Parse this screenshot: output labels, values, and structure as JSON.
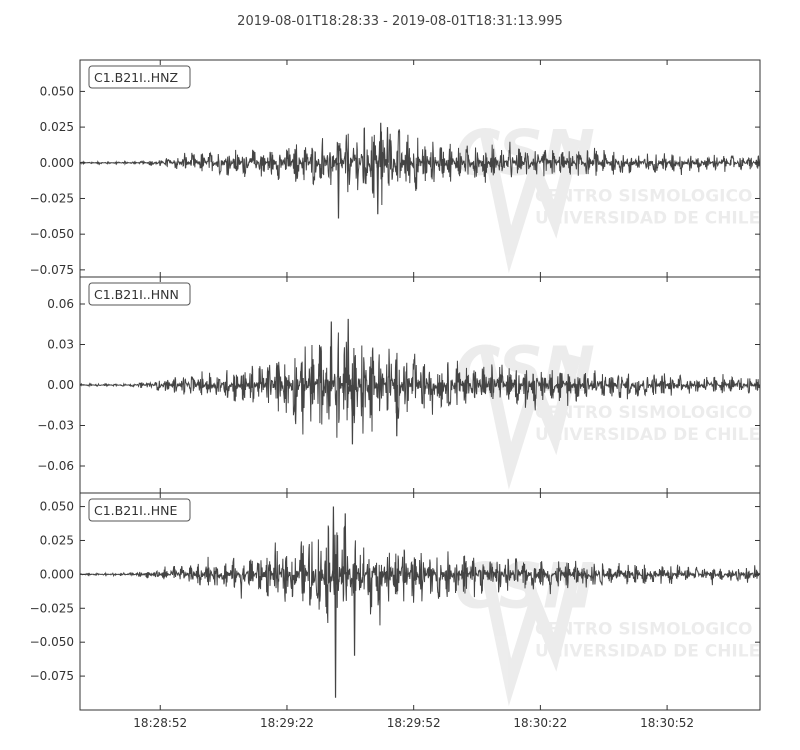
{
  "chart_data": {
    "type": "line",
    "title": "2019-08-01T18:28:33  -  2019-08-01T18:31:13.995",
    "x_range": [
      "2019-08-01T18:28:33",
      "2019-08-01T18:31:13.995"
    ],
    "x_ticks": [
      "18:28:52",
      "18:29:22",
      "18:29:52",
      "18:30:22",
      "18:30:52"
    ],
    "line_color": "#444444",
    "watermark": {
      "logo_text": "CSN",
      "lines": [
        "CENTRO SISMOLOGICO NACIONAL",
        "UNIVERSIDAD DE CHILE"
      ]
    },
    "panels": [
      {
        "label": "C1.B21I..HNZ",
        "ylim": [
          -0.08,
          0.072
        ],
        "y_ticks": [
          0.05,
          0.025,
          0.0,
          -0.025,
          -0.05,
          -0.075
        ],
        "y_tick_labels": [
          "0.050",
          "0.025",
          "0.000",
          "−0.025",
          "−0.050",
          "−0.075"
        ],
        "envelope": [
          [
            0,
            0.0008
          ],
          [
            15,
            0.001
          ],
          [
            20,
            0.004
          ],
          [
            30,
            0.008
          ],
          [
            45,
            0.012
          ],
          [
            55,
            0.016
          ],
          [
            60,
            0.02
          ],
          [
            65,
            0.026
          ],
          [
            72,
            0.03
          ],
          [
            78,
            0.022
          ],
          [
            85,
            0.014
          ],
          [
            100,
            0.011
          ],
          [
            125,
            0.009
          ],
          [
            145,
            0.006
          ],
          [
            161,
            0.005
          ]
        ],
        "peaks": [
          [
            61.2,
            -0.039
          ],
          [
            70.5,
            -0.036
          ],
          [
            71.2,
            0.028
          ],
          [
            72.8,
            0.025
          ]
        ]
      },
      {
        "label": "C1.B21I..HNN",
        "ylim": [
          -0.08,
          0.08
        ],
        "y_ticks": [
          0.06,
          0.03,
          0.0,
          -0.03,
          -0.06
        ],
        "y_tick_labels": [
          "0.06",
          "0.03",
          "0.00",
          "−0.03",
          "−0.06"
        ],
        "envelope": [
          [
            0,
            0.0008
          ],
          [
            12,
            0.001
          ],
          [
            18,
            0.004
          ],
          [
            30,
            0.01
          ],
          [
            42,
            0.016
          ],
          [
            50,
            0.025
          ],
          [
            58,
            0.038
          ],
          [
            62,
            0.045
          ],
          [
            70,
            0.035
          ],
          [
            78,
            0.024
          ],
          [
            90,
            0.018
          ],
          [
            105,
            0.014
          ],
          [
            125,
            0.011
          ],
          [
            145,
            0.007
          ],
          [
            161,
            0.006
          ]
        ],
        "peaks": [
          [
            59.5,
            0.047
          ],
          [
            63.5,
            0.049
          ],
          [
            64.5,
            -0.044
          ],
          [
            75,
            -0.038
          ]
        ]
      },
      {
        "label": "C1.B21I..HNE",
        "ylim": [
          -0.1,
          0.06
        ],
        "y_ticks": [
          0.05,
          0.025,
          0.0,
          -0.025,
          -0.05,
          -0.075
        ],
        "y_tick_labels": [
          "0.050",
          "0.025",
          "0.000",
          "−0.025",
          "−0.050",
          "−0.075"
        ],
        "envelope": [
          [
            0,
            0.0008
          ],
          [
            12,
            0.001
          ],
          [
            18,
            0.004
          ],
          [
            30,
            0.01
          ],
          [
            42,
            0.015
          ],
          [
            50,
            0.022
          ],
          [
            55,
            0.032
          ],
          [
            60,
            0.04
          ],
          [
            66,
            0.033
          ],
          [
            75,
            0.024
          ],
          [
            90,
            0.016
          ],
          [
            105,
            0.012
          ],
          [
            125,
            0.009
          ],
          [
            145,
            0.006
          ],
          [
            161,
            0.005
          ]
        ],
        "peaks": [
          [
            60.5,
            -0.091
          ],
          [
            60.0,
            0.05
          ],
          [
            62.8,
            0.045
          ],
          [
            65.0,
            -0.06
          ]
        ]
      }
    ]
  }
}
